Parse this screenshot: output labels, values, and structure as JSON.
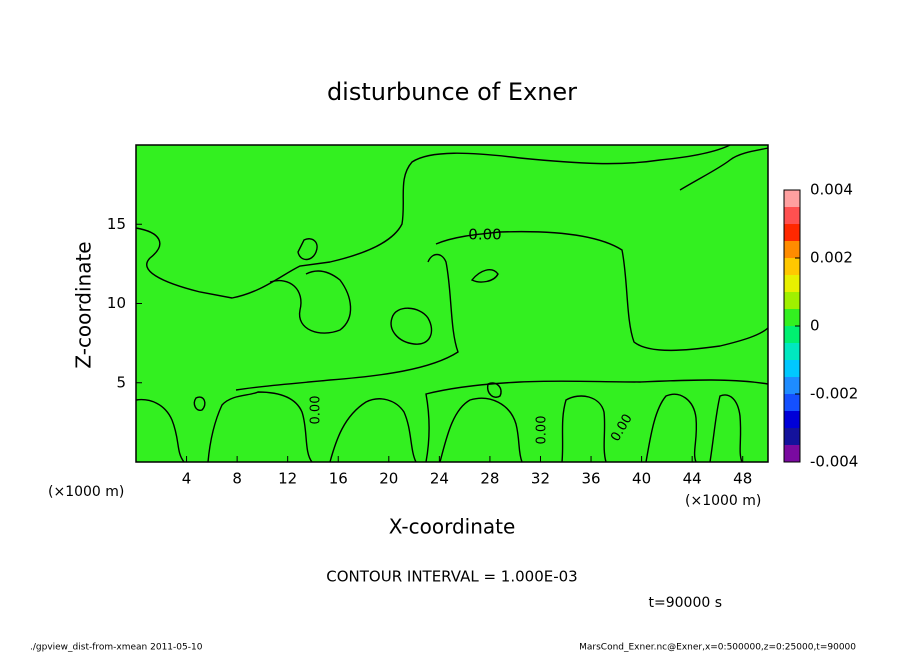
{
  "chart_data": {
    "type": "contour",
    "title": "disturbunce of Exner",
    "xlabel": "X-coordinate",
    "ylabel": "Z-coordinate",
    "x_unit": "(×1000 m)",
    "xlim": [
      0,
      50
    ],
    "xticks": [
      4,
      8,
      12,
      16,
      20,
      24,
      28,
      32,
      36,
      40,
      44,
      48
    ],
    "ylim": [
      0,
      20
    ],
    "yticks": [
      5,
      10,
      15
    ],
    "contour_labels": [
      "0.00",
      "0.00",
      "0.00",
      "0.00"
    ],
    "contour_interval_label": "CONTOUR INTERVAL = 1.000E-03",
    "time_label": "t=90000 s",
    "colorbar": {
      "levels": [
        -0.004,
        -0.0035,
        -0.003,
        -0.0025,
        -0.002,
        -0.0015,
        -0.001,
        -0.0005,
        0,
        0.0005,
        0.001,
        0.0015,
        0.002,
        0.0025,
        0.003,
        0.0035,
        0.004
      ],
      "colors": [
        "#7a0aa0",
        "#14129c",
        "#0000d8",
        "#1450ff",
        "#1e8cff",
        "#00c8ff",
        "#00e8c0",
        "#00f070",
        "#33f020",
        "#a0f000",
        "#e8f000",
        "#ffc800",
        "#ff8c00",
        "#ff2800",
        "#ff5050",
        "#ffa0a0"
      ],
      "ticks": [
        -0.004,
        -0.002,
        0,
        0.002,
        0.004
      ]
    },
    "footer_left": "./gpview_dist-from-xmean  2011-05-10",
    "footer_right": "MarsCond_Exner.nc@Exner,x=0:500000,z=0:25000,t=90000"
  }
}
